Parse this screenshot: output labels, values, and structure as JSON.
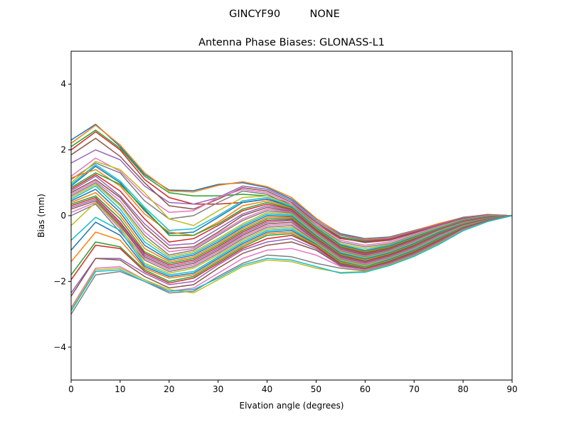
{
  "figure": {
    "suptitle": "GINCYF90         NONE"
  },
  "chart_data": {
    "type": "line",
    "title": "Antenna Phase Biases: GLONASS-L1",
    "xlabel": "Elvation angle (degrees)",
    "ylabel": "Bias (mm)",
    "xlim": [
      0,
      90
    ],
    "ylim": [
      -5,
      5
    ],
    "xticks": [
      0,
      10,
      20,
      30,
      40,
      50,
      60,
      70,
      80,
      90
    ],
    "yticks": [
      -4,
      -2,
      0,
      2,
      4
    ],
    "ytick_labels": [
      "−4",
      "−2",
      "0",
      "2",
      "4"
    ],
    "grid": false,
    "legend": "none",
    "x": [
      0,
      5,
      10,
      15,
      20,
      25,
      30,
      35,
      40,
      45,
      50,
      55,
      60,
      65,
      70,
      75,
      80,
      85,
      90
    ],
    "colors": [
      "#1f77b4",
      "#ff7f0e",
      "#2ca02c",
      "#d62728",
      "#9467bd",
      "#8c564b",
      "#e377c2",
      "#7f7f7f",
      "#bcbd22",
      "#17becf"
    ],
    "series": [
      {
        "values": [
          2.3,
          2.78,
          2.1,
          1.25,
          0.78,
          0.76,
          0.95,
          1.0,
          0.85,
          0.5,
          -0.1,
          -0.55,
          -0.7,
          -0.65,
          -0.45,
          -0.25,
          -0.05,
          0.03,
          0
        ]
      },
      {
        "values": [
          2.2,
          2.75,
          2.15,
          1.3,
          0.75,
          0.72,
          0.92,
          1.03,
          0.88,
          0.55,
          -0.08,
          -0.58,
          -0.72,
          -0.67,
          -0.46,
          -0.24,
          -0.06,
          0.04,
          0
        ]
      },
      {
        "values": [
          2.1,
          2.6,
          2.05,
          1.2,
          0.7,
          0.6,
          0.6,
          0.65,
          0.6,
          0.35,
          -0.2,
          -0.65,
          -0.78,
          -0.7,
          -0.5,
          -0.28,
          -0.08,
          0.03,
          0
        ]
      },
      {
        "values": [
          2.0,
          2.55,
          2.0,
          1.1,
          0.55,
          0.35,
          0.35,
          0.4,
          0.5,
          0.3,
          -0.25,
          -0.7,
          -0.8,
          -0.72,
          -0.52,
          -0.3,
          -0.1,
          0.02,
          0
        ]
      },
      {
        "values": [
          1.6,
          2.0,
          1.7,
          0.9,
          0.4,
          0.35,
          0.55,
          0.9,
          0.8,
          0.45,
          -0.15,
          -0.6,
          -0.75,
          -0.7,
          -0.48,
          -0.27,
          -0.07,
          0.03,
          0
        ]
      },
      {
        "values": [
          1.85,
          2.35,
          1.8,
          1.0,
          0.3,
          0.2,
          0.5,
          0.85,
          0.75,
          0.4,
          -0.2,
          -0.68,
          -0.82,
          -0.75,
          -0.53,
          -0.3,
          -0.09,
          0.02,
          0
        ]
      },
      {
        "values": [
          1.2,
          1.75,
          1.35,
          0.6,
          0.1,
          0.15,
          0.55,
          0.8,
          0.7,
          0.35,
          -0.25,
          -0.75,
          -0.9,
          -0.8,
          -0.56,
          -0.32,
          -0.11,
          0.01,
          0
        ]
      },
      {
        "values": [
          1.1,
          1.6,
          1.3,
          0.45,
          -0.1,
          0.0,
          0.4,
          0.75,
          0.65,
          0.3,
          -0.3,
          -0.8,
          -0.95,
          -0.85,
          -0.6,
          -0.35,
          -0.12,
          0.0,
          0
        ]
      },
      {
        "values": [
          1.0,
          1.65,
          1.4,
          0.7,
          -0.1,
          -0.3,
          0.15,
          0.55,
          0.6,
          0.3,
          -0.32,
          -0.85,
          -1.0,
          -0.88,
          -0.62,
          -0.36,
          -0.13,
          -0.01,
          0
        ]
      },
      {
        "values": [
          0.95,
          1.55,
          1.05,
          0.25,
          -0.45,
          -0.4,
          0.0,
          0.45,
          0.55,
          0.28,
          -0.35,
          -0.88,
          -1.05,
          -0.9,
          -0.64,
          -0.38,
          -0.14,
          -0.02,
          0
        ]
      },
      {
        "values": [
          0.9,
          1.5,
          1.0,
          0.15,
          -0.55,
          -0.5,
          -0.05,
          0.4,
          0.5,
          0.25,
          -0.38,
          -0.9,
          -1.08,
          -0.93,
          -0.66,
          -0.4,
          -0.15,
          -0.03,
          0
        ]
      },
      {
        "values": [
          1.15,
          1.4,
          0.9,
          0.05,
          -0.5,
          -0.6,
          -0.2,
          0.3,
          0.45,
          0.22,
          -0.4,
          -0.93,
          -1.1,
          -0.95,
          -0.68,
          -0.41,
          -0.16,
          -0.04,
          0
        ]
      },
      {
        "values": [
          0.85,
          1.3,
          0.95,
          0.2,
          -0.6,
          -0.6,
          -0.25,
          0.2,
          0.4,
          0.2,
          -0.42,
          -0.95,
          -1.12,
          -0.97,
          -0.7,
          -0.42,
          -0.17,
          -0.05,
          0
        ]
      },
      {
        "values": [
          0.8,
          1.25,
          0.75,
          -0.1,
          -0.8,
          -0.7,
          -0.3,
          0.15,
          0.35,
          0.18,
          -0.45,
          -0.98,
          -1.15,
          -1.0,
          -0.72,
          -0.43,
          -0.18,
          -0.05,
          0
        ]
      },
      {
        "values": [
          0.75,
          1.2,
          0.6,
          -0.25,
          -0.9,
          -0.85,
          -0.4,
          0.05,
          0.3,
          0.15,
          -0.48,
          -1.0,
          -1.18,
          -1.02,
          -0.74,
          -0.44,
          -0.19,
          -0.06,
          0
        ]
      },
      {
        "values": [
          0.7,
          1.1,
          0.55,
          -0.35,
          -1.0,
          -0.95,
          -0.5,
          0.0,
          0.25,
          0.12,
          -0.5,
          -1.03,
          -1.2,
          -1.04,
          -0.76,
          -0.45,
          -0.2,
          -0.06,
          0
        ]
      },
      {
        "values": [
          0.65,
          1.05,
          0.45,
          -0.5,
          -1.1,
          -1.0,
          -0.55,
          -0.1,
          0.2,
          0.1,
          -0.52,
          -1.05,
          -1.23,
          -1.06,
          -0.78,
          -0.46,
          -0.21,
          -0.07,
          0
        ]
      },
      {
        "values": [
          0.6,
          1.0,
          0.35,
          -0.6,
          -1.2,
          -1.05,
          -0.6,
          -0.15,
          0.15,
          0.08,
          -0.55,
          -1.08,
          -1.25,
          -1.08,
          -0.8,
          -0.47,
          -0.22,
          -0.07,
          0
        ]
      },
      {
        "values": [
          0.55,
          0.95,
          0.3,
          -0.7,
          -1.25,
          -1.1,
          -0.7,
          -0.25,
          0.1,
          0.05,
          -0.57,
          -1.1,
          -1.28,
          -1.1,
          -0.82,
          -0.48,
          -0.23,
          -0.08,
          0
        ]
      },
      {
        "values": [
          0.5,
          0.9,
          0.2,
          -0.8,
          -1.3,
          -1.15,
          -0.75,
          -0.3,
          0.05,
          0.02,
          -0.6,
          -1.13,
          -1.3,
          -1.12,
          -0.84,
          -0.5,
          -0.24,
          -0.08,
          0
        ]
      },
      {
        "values": [
          0.45,
          0.8,
          0.1,
          -0.9,
          -1.35,
          -1.2,
          -0.8,
          -0.35,
          0.0,
          -0.02,
          -0.62,
          -1.15,
          -1.33,
          -1.14,
          -0.86,
          -0.52,
          -0.25,
          -0.09,
          0
        ]
      },
      {
        "values": [
          0.4,
          0.7,
          0.0,
          -1.0,
          -1.4,
          -1.25,
          -0.85,
          -0.4,
          -0.05,
          -0.05,
          -0.65,
          -1.18,
          -1.35,
          -1.16,
          -0.88,
          -0.54,
          -0.26,
          -0.09,
          0
        ]
      },
      {
        "values": [
          0.35,
          0.6,
          -0.1,
          -1.1,
          -1.45,
          -1.3,
          -0.9,
          -0.45,
          -0.1,
          -0.08,
          -0.67,
          -1.2,
          -1.38,
          -1.18,
          -0.9,
          -0.55,
          -0.27,
          -0.1,
          0
        ]
      },
      {
        "values": [
          0.3,
          0.55,
          -0.2,
          -1.15,
          -1.5,
          -1.35,
          -0.95,
          -0.5,
          -0.15,
          -0.12,
          -0.7,
          -1.23,
          -1.4,
          -1.2,
          -0.92,
          -0.57,
          -0.28,
          -0.1,
          0
        ]
      },
      {
        "values": [
          0.25,
          0.5,
          -0.25,
          -1.2,
          -1.55,
          -1.4,
          -1.0,
          -0.55,
          -0.2,
          -0.15,
          -0.72,
          -1.25,
          -1.42,
          -1.22,
          -0.94,
          -0.58,
          -0.29,
          -0.11,
          0
        ]
      },
      {
        "values": [
          0.2,
          0.45,
          -0.3,
          -1.25,
          -1.6,
          -1.45,
          -1.05,
          -0.6,
          -0.25,
          -0.2,
          -0.75,
          -1.28,
          -1.45,
          -1.24,
          -0.96,
          -0.6,
          -0.3,
          -0.11,
          0
        ]
      },
      {
        "values": [
          0.1,
          0.4,
          -0.4,
          -1.3,
          -1.65,
          -1.5,
          -1.1,
          -0.65,
          -0.3,
          -0.25,
          -0.78,
          -1.3,
          -1.47,
          -1.26,
          -0.98,
          -0.62,
          -0.31,
          -0.12,
          0
        ]
      },
      {
        "values": [
          0.0,
          0.35,
          -0.5,
          -1.35,
          -1.7,
          -1.55,
          -1.15,
          -0.7,
          -0.35,
          -0.3,
          -0.8,
          -1.33,
          -1.5,
          -1.28,
          -1.0,
          -0.64,
          -0.32,
          -0.12,
          0
        ]
      },
      {
        "values": [
          -0.3,
          0.4,
          -0.35,
          -1.45,
          -1.75,
          -1.6,
          -1.2,
          -0.75,
          -0.4,
          -0.35,
          -0.83,
          -1.35,
          -1.52,
          -1.3,
          -1.02,
          -0.66,
          -0.33,
          -0.13,
          0
        ]
      },
      {
        "values": [
          -0.75,
          -0.05,
          -0.45,
          -1.5,
          -1.8,
          -1.7,
          -1.25,
          -0.8,
          -0.45,
          -0.4,
          -0.86,
          -1.38,
          -1.55,
          -1.32,
          -1.04,
          -0.68,
          -0.34,
          -0.13,
          0
        ]
      },
      {
        "values": [
          -1.05,
          -0.2,
          -0.6,
          -1.55,
          -1.85,
          -1.75,
          -1.3,
          -0.85,
          -0.5,
          -0.45,
          -0.88,
          -1.4,
          -1.57,
          -1.34,
          -1.06,
          -0.7,
          -0.35,
          -0.14,
          0
        ]
      },
      {
        "values": [
          -1.4,
          -0.5,
          -0.75,
          -1.6,
          -1.9,
          -1.8,
          -1.35,
          -0.9,
          -0.55,
          -0.5,
          -0.9,
          -1.42,
          -1.58,
          -1.36,
          -1.08,
          -0.72,
          -0.36,
          -0.14,
          0
        ]
      },
      {
        "values": [
          -1.8,
          -0.8,
          -0.95,
          -1.65,
          -2.0,
          -1.85,
          -1.4,
          -0.95,
          -0.6,
          -0.55,
          -0.93,
          -1.45,
          -1.6,
          -1.38,
          -1.1,
          -0.74,
          -0.37,
          -0.15,
          0
        ]
      },
      {
        "values": [
          -1.95,
          -0.9,
          -1.0,
          -1.7,
          -2.05,
          -1.9,
          -1.45,
          -1.0,
          -0.7,
          -0.6,
          -0.95,
          -1.48,
          -1.62,
          -1.4,
          -1.12,
          -0.76,
          -0.38,
          -0.15,
          0
        ]
      },
      {
        "values": [
          -2.35,
          -1.3,
          -1.3,
          -1.75,
          -2.1,
          -2.0,
          -1.5,
          -1.05,
          -0.8,
          -0.7,
          -1.0,
          -1.5,
          -1.63,
          -1.42,
          -1.14,
          -0.78,
          -0.39,
          -0.16,
          0
        ]
      },
      {
        "values": [
          -2.45,
          -1.3,
          -1.35,
          -1.85,
          -2.2,
          -2.1,
          -1.6,
          -1.15,
          -0.9,
          -0.8,
          -1.05,
          -1.52,
          -1.64,
          -1.44,
          -1.16,
          -0.8,
          -0.4,
          -0.16,
          0
        ]
      },
      {
        "values": [
          -2.8,
          -1.6,
          -1.55,
          -1.95,
          -2.3,
          -2.2,
          -1.75,
          -1.3,
          -1.05,
          -1.0,
          -1.2,
          -1.55,
          -1.65,
          -1.46,
          -1.18,
          -0.82,
          -0.42,
          -0.17,
          0
        ]
      },
      {
        "values": [
          -3.0,
          -1.8,
          -1.7,
          -2.0,
          -2.35,
          -2.3,
          -1.85,
          -1.45,
          -1.2,
          -1.25,
          -1.45,
          -1.6,
          -1.68,
          -1.48,
          -1.2,
          -0.84,
          -0.44,
          -0.17,
          0
        ]
      },
      {
        "values": [
          -2.85,
          -1.65,
          -1.6,
          -1.95,
          -2.25,
          -2.35,
          -1.95,
          -1.55,
          -1.35,
          -1.4,
          -1.6,
          -1.73,
          -1.7,
          -1.5,
          -1.22,
          -0.86,
          -0.45,
          -0.18,
          0
        ]
      },
      {
        "values": [
          -2.9,
          -1.7,
          -1.65,
          -2.0,
          -2.3,
          -2.25,
          -1.9,
          -1.5,
          -1.3,
          -1.35,
          -1.55,
          -1.75,
          -1.72,
          -1.52,
          -1.24,
          -0.88,
          -0.46,
          -0.18,
          0
        ]
      }
    ]
  }
}
